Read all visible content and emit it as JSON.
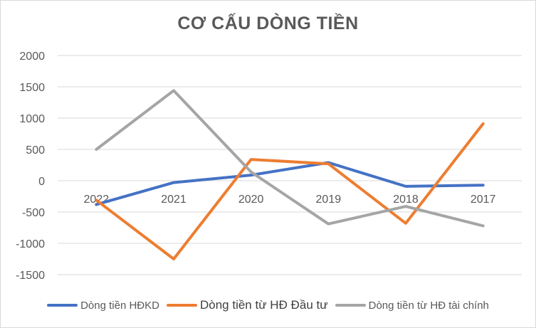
{
  "chart_data": {
    "type": "line",
    "title": "CƠ CẤU DÒNG TIỀN",
    "categories": [
      "2022",
      "2021",
      "2020",
      "2019",
      "2018",
      "2017"
    ],
    "ylim": [
      -1500,
      2000
    ],
    "yticks": [
      "2000",
      "1500",
      "1000",
      "500",
      "0",
      "-500",
      "-1000",
      "-1500"
    ],
    "ytick_values": [
      2000,
      1500,
      1000,
      500,
      0,
      -500,
      -1000,
      -1500
    ],
    "grid": true,
    "legend": "bottom",
    "series": [
      {
        "name": "Dòng tiền HĐKD",
        "color": "#4472C4",
        "values": [
          -380,
          -30,
          90,
          290,
          -90,
          -70
        ]
      },
      {
        "name": "Dòng tiền từ HĐ Đầu tư",
        "color": "#ED7D31",
        "values": [
          -310,
          -1250,
          340,
          270,
          -680,
          910
        ]
      },
      {
        "name": "Dòng tiền từ HĐ tài chính",
        "color": "#A5A5A5",
        "values": [
          500,
          1440,
          140,
          -690,
          -410,
          -720
        ]
      }
    ]
  }
}
